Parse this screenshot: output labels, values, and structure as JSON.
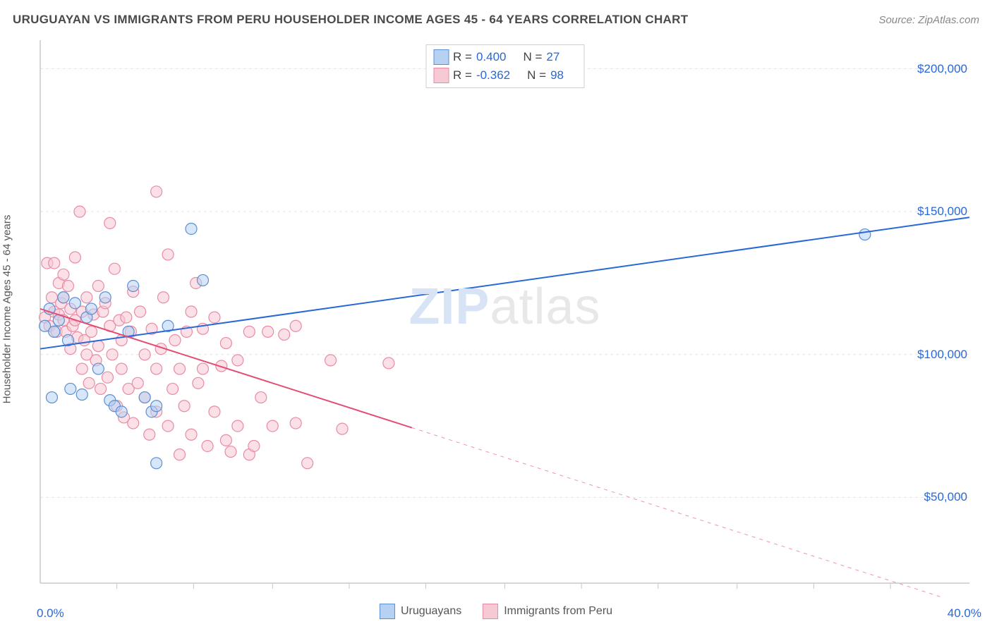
{
  "title": "URUGUAYAN VS IMMIGRANTS FROM PERU HOUSEHOLDER INCOME AGES 45 - 64 YEARS CORRELATION CHART",
  "source": "Source: ZipAtlas.com",
  "watermark_a": "ZIP",
  "watermark_b": "atlas",
  "chart": {
    "type": "scatter",
    "y_axis_label": "Householder Income Ages 45 - 64 years",
    "xlim": [
      0,
      40
    ],
    "ylim": [
      20000,
      210000
    ],
    "x_ticks": [
      0,
      40
    ],
    "x_tick_labels": [
      "0.0%",
      "40.0%"
    ],
    "x_minor_ticks": [
      3.3,
      6.6,
      10,
      13.3,
      16.6,
      20,
      23.3,
      26.6,
      30,
      33.3,
      36.6
    ],
    "y_ticks": [
      50000,
      100000,
      150000,
      200000
    ],
    "y_tick_labels": [
      "$50,000",
      "$100,000",
      "$150,000",
      "$200,000"
    ],
    "grid_color": "#e5e5e5",
    "axis_color": "#c8c8c8",
    "background_color": "#ffffff",
    "marker_radius": 8,
    "marker_opacity": 0.55,
    "series": [
      {
        "name": "Uruguayans",
        "color_fill": "#b7d1f3",
        "color_stroke": "#5a8fd6",
        "R": "0.400",
        "N": "27",
        "trend": {
          "x1": 0,
          "y1": 102000,
          "x2": 40,
          "y2": 148000,
          "color": "#2968d8",
          "width": 2
        },
        "points": [
          [
            0.2,
            110000
          ],
          [
            0.4,
            116000
          ],
          [
            0.5,
            85000
          ],
          [
            0.8,
            112000
          ],
          [
            1.0,
            120000
          ],
          [
            1.2,
            105000
          ],
          [
            1.3,
            88000
          ],
          [
            1.5,
            118000
          ],
          [
            1.8,
            86000
          ],
          [
            2.0,
            113000
          ],
          [
            2.2,
            116000
          ],
          [
            2.5,
            95000
          ],
          [
            2.8,
            120000
          ],
          [
            3.0,
            84000
          ],
          [
            3.2,
            82000
          ],
          [
            3.5,
            80000
          ],
          [
            3.8,
            108000
          ],
          [
            4.0,
            124000
          ],
          [
            4.5,
            85000
          ],
          [
            4.8,
            80000
          ],
          [
            5.0,
            62000
          ],
          [
            5.5,
            110000
          ],
          [
            6.5,
            144000
          ],
          [
            7.0,
            126000
          ],
          [
            5.0,
            82000
          ],
          [
            0.6,
            108000
          ],
          [
            35.5,
            142000
          ]
        ]
      },
      {
        "name": "Immigrants from Peru",
        "color_fill": "#f7c9d4",
        "color_stroke": "#e88ba3",
        "R": "-0.362",
        "N": "98",
        "trend": {
          "x1": 0,
          "y1": 116000,
          "x2": 40,
          "y2": 12000,
          "solid_until_x": 16,
          "color": "#e34d74",
          "width": 2
        },
        "points": [
          [
            0.2,
            113000
          ],
          [
            0.3,
            132000
          ],
          [
            0.4,
            110000
          ],
          [
            0.5,
            120000
          ],
          [
            0.6,
            115000
          ],
          [
            0.6,
            132000
          ],
          [
            0.7,
            108000
          ],
          [
            0.8,
            114000
          ],
          [
            0.8,
            125000
          ],
          [
            0.9,
            118000
          ],
          [
            1.0,
            120000
          ],
          [
            1.0,
            128000
          ],
          [
            1.0,
            112000
          ],
          [
            1.1,
            108000
          ],
          [
            1.2,
            124000
          ],
          [
            1.3,
            116000
          ],
          [
            1.3,
            102000
          ],
          [
            1.4,
            110000
          ],
          [
            1.5,
            112000
          ],
          [
            1.5,
            134000
          ],
          [
            1.6,
            106000
          ],
          [
            1.7,
            150000
          ],
          [
            1.8,
            115000
          ],
          [
            1.8,
            95000
          ],
          [
            1.9,
            105000
          ],
          [
            2.0,
            100000
          ],
          [
            2.0,
            120000
          ],
          [
            2.1,
            90000
          ],
          [
            2.2,
            108000
          ],
          [
            2.3,
            114000
          ],
          [
            2.4,
            98000
          ],
          [
            2.5,
            124000
          ],
          [
            2.5,
            103000
          ],
          [
            2.6,
            88000
          ],
          [
            2.7,
            115000
          ],
          [
            2.8,
            118000
          ],
          [
            2.9,
            92000
          ],
          [
            3.0,
            110000
          ],
          [
            3.0,
            146000
          ],
          [
            3.1,
            100000
          ],
          [
            3.2,
            130000
          ],
          [
            3.3,
            82000
          ],
          [
            3.4,
            112000
          ],
          [
            3.5,
            95000
          ],
          [
            3.5,
            105000
          ],
          [
            3.6,
            78000
          ],
          [
            3.7,
            113000
          ],
          [
            3.8,
            88000
          ],
          [
            3.9,
            108000
          ],
          [
            4.0,
            122000
          ],
          [
            4.0,
            76000
          ],
          [
            4.2,
            90000
          ],
          [
            4.3,
            115000
          ],
          [
            4.5,
            85000
          ],
          [
            4.5,
            100000
          ],
          [
            4.7,
            72000
          ],
          [
            4.8,
            109000
          ],
          [
            5.0,
            95000
          ],
          [
            5.0,
            80000
          ],
          [
            5.0,
            157000
          ],
          [
            5.2,
            102000
          ],
          [
            5.3,
            120000
          ],
          [
            5.5,
            75000
          ],
          [
            5.5,
            135000
          ],
          [
            5.7,
            88000
          ],
          [
            5.8,
            105000
          ],
          [
            6.0,
            95000
          ],
          [
            6.0,
            65000
          ],
          [
            6.2,
            82000
          ],
          [
            6.3,
            108000
          ],
          [
            6.5,
            115000
          ],
          [
            6.5,
            72000
          ],
          [
            6.7,
            125000
          ],
          [
            6.8,
            90000
          ],
          [
            7.0,
            109000
          ],
          [
            7.0,
            95000
          ],
          [
            7.2,
            68000
          ],
          [
            7.5,
            113000
          ],
          [
            7.5,
            80000
          ],
          [
            7.8,
            96000
          ],
          [
            8.0,
            70000
          ],
          [
            8.0,
            104000
          ],
          [
            8.2,
            66000
          ],
          [
            8.5,
            75000
          ],
          [
            8.5,
            98000
          ],
          [
            9.0,
            108000
          ],
          [
            9.0,
            65000
          ],
          [
            9.2,
            68000
          ],
          [
            9.5,
            85000
          ],
          [
            9.8,
            108000
          ],
          [
            10.0,
            75000
          ],
          [
            10.5,
            107000
          ],
          [
            11.0,
            110000
          ],
          [
            11.0,
            76000
          ],
          [
            11.5,
            62000
          ],
          [
            12.5,
            98000
          ],
          [
            13.0,
            74000
          ],
          [
            15.0,
            97000
          ]
        ]
      }
    ],
    "stats_box": {
      "r_label": "R =",
      "n_label": "N ="
    },
    "bottom_legend": [
      "Uruguayans",
      "Immigrants from Peru"
    ]
  }
}
